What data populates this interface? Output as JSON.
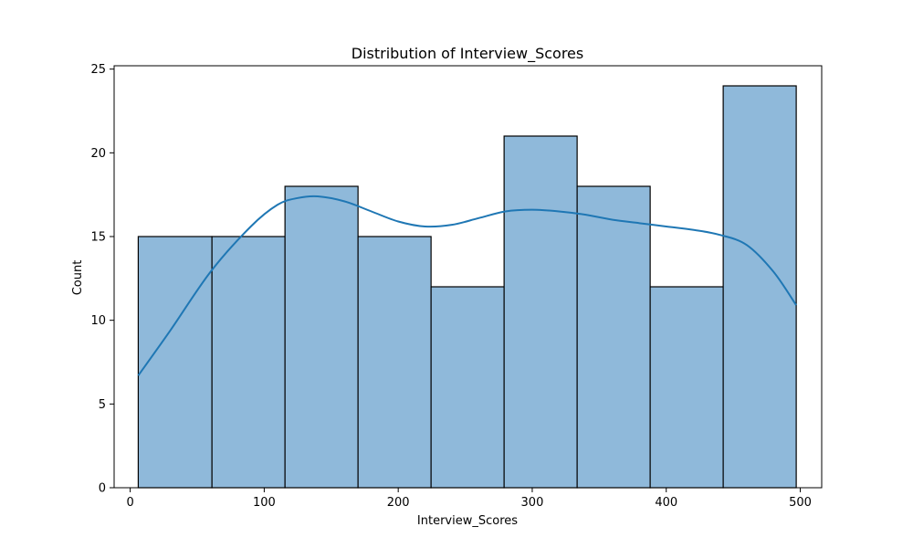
{
  "chart_data": {
    "type": "bar",
    "subtype": "histogram",
    "title": "Distribution of Interview_Scores",
    "xlabel": "Interview_Scores",
    "ylabel": "Count",
    "xlim": [
      -12,
      516
    ],
    "ylim": [
      0,
      25.2
    ],
    "xticks": [
      0,
      100,
      200,
      300,
      400,
      500
    ],
    "yticks": [
      0,
      5,
      10,
      15,
      20,
      25
    ],
    "bins": [
      {
        "start": 6,
        "end": 61,
        "count": 15
      },
      {
        "start": 61,
        "end": 115.5,
        "count": 15
      },
      {
        "start": 115.5,
        "end": 170,
        "count": 18
      },
      {
        "start": 170,
        "end": 224.5,
        "count": 15
      },
      {
        "start": 224.5,
        "end": 279,
        "count": 12
      },
      {
        "start": 279,
        "end": 333.5,
        "count": 21
      },
      {
        "start": 333.5,
        "end": 388,
        "count": 18
      },
      {
        "start": 388,
        "end": 442.5,
        "count": 12
      },
      {
        "start": 442.5,
        "end": 497,
        "count": 24
      }
    ],
    "kde": {
      "x": [
        6,
        30,
        60,
        90,
        110,
        125,
        140,
        160,
        180,
        200,
        220,
        240,
        260,
        280,
        300,
        320,
        340,
        360,
        380,
        400,
        420,
        440,
        460,
        480,
        497
      ],
      "y": [
        6.7,
        9.4,
        12.9,
        15.6,
        16.9,
        17.3,
        17.4,
        17.1,
        16.5,
        15.9,
        15.6,
        15.7,
        16.1,
        16.5,
        16.6,
        16.5,
        16.3,
        16.0,
        15.8,
        15.6,
        15.4,
        15.1,
        14.5,
        12.9,
        10.9
      ]
    },
    "colors": {
      "bar_fill": "#8fb9da",
      "bar_edge": "#000000",
      "kde_line": "#1f77b4"
    },
    "grid": false,
    "legend": "none"
  }
}
